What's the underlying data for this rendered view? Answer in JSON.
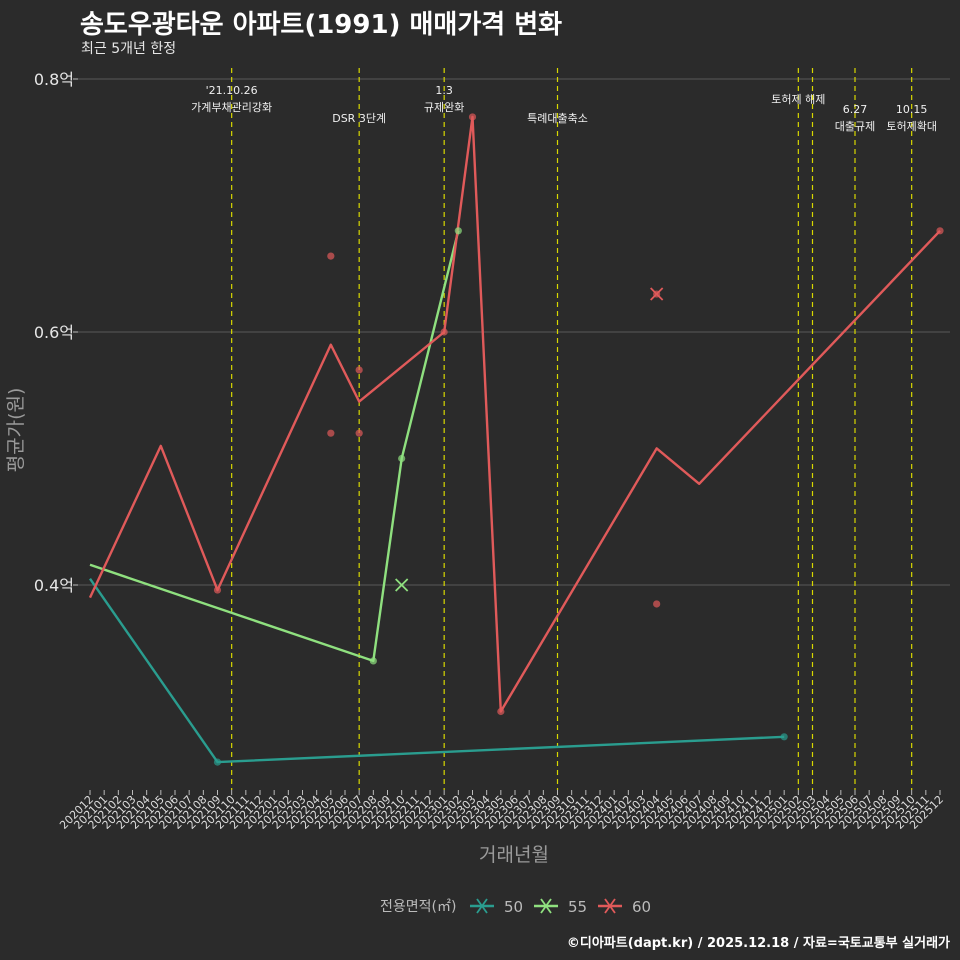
{
  "title": "송도우광타운 아파트(1991) 매매가격 변화",
  "subtitle": "최근 5개년 한정",
  "caption": "©디아파트(dapt.kr) / 2025.12.18 / 자료=국토교통부 실거래가",
  "colors": {
    "background": "#2b2b2b",
    "grid": "#5a5a5a",
    "event_line": "#d8d800",
    "series_50": "#2a9d8f",
    "series_55": "#8fe07f",
    "series_60": "#e05a5a"
  },
  "chart_data": {
    "type": "line",
    "xlabel": "거래년월",
    "ylabel": "평균가(원)",
    "ylim": [
      0.26,
      0.81
    ],
    "yticks": [
      {
        "value": 0.4,
        "label": "0.4억"
      },
      {
        "value": 0.6,
        "label": "0.6억"
      },
      {
        "value": 0.8,
        "label": "0.8억"
      }
    ],
    "categories": [
      "202012",
      "202101",
      "202102",
      "202103",
      "202104",
      "202105",
      "202106",
      "202107",
      "202108",
      "202109",
      "202110",
      "202111",
      "202112",
      "202201",
      "202202",
      "202203",
      "202204",
      "202205",
      "202206",
      "202207",
      "202208",
      "202209",
      "202210",
      "202211",
      "202212",
      "202301",
      "202302",
      "202303",
      "202304",
      "202305",
      "202306",
      "202307",
      "202308",
      "202309",
      "202310",
      "202311",
      "202312",
      "202401",
      "202402",
      "202403",
      "202404",
      "202405",
      "202406",
      "202407",
      "202408",
      "202409",
      "202410",
      "202411",
      "202412",
      "202501",
      "202502",
      "202503",
      "202504",
      "202505",
      "202506",
      "202507",
      "202508",
      "202509",
      "202510",
      "202511",
      "202512"
    ],
    "legend_title": "전용면적(㎡)",
    "series": [
      {
        "name": "50",
        "color": "#2a9d8f",
        "line": [
          [
            "202012",
            0.405
          ],
          [
            "202109",
            0.26
          ],
          [
            "202501",
            0.28
          ]
        ],
        "points": [
          [
            "202109",
            0.26
          ],
          [
            "202501",
            0.28
          ]
        ],
        "crosses": []
      },
      {
        "name": "55",
        "color": "#8fe07f",
        "line": [
          [
            "202012",
            0.416
          ],
          [
            "202208",
            0.34
          ],
          [
            "202210",
            0.5
          ],
          [
            "202302",
            0.68
          ]
        ],
        "points": [
          [
            "202208",
            0.34
          ],
          [
            "202210",
            0.5
          ],
          [
            "202302",
            0.68
          ]
        ],
        "crosses": [
          [
            "202210",
            0.4
          ]
        ]
      },
      {
        "name": "60",
        "color": "#e05a5a",
        "line": [
          [
            "202012",
            0.39
          ],
          [
            "202105",
            0.51
          ],
          [
            "202109",
            0.396
          ],
          [
            "202205",
            0.59
          ],
          [
            "202207",
            0.545
          ],
          [
            "202301",
            0.6
          ],
          [
            "202303",
            0.77
          ],
          [
            "202305",
            0.3
          ],
          [
            "202404",
            0.508
          ],
          [
            "202407",
            0.48
          ],
          [
            "202512",
            0.68
          ]
        ],
        "points": [
          [
            "202109",
            0.396
          ],
          [
            "202205",
            0.66
          ],
          [
            "202205",
            0.52
          ],
          [
            "202207",
            0.57
          ],
          [
            "202207",
            0.52
          ],
          [
            "202301",
            0.6
          ],
          [
            "202303",
            0.77
          ],
          [
            "202305",
            0.3
          ],
          [
            "202404",
            0.385
          ],
          [
            "202404",
            0.63
          ],
          [
            "202512",
            0.68
          ]
        ],
        "crosses": [
          [
            "202404",
            0.63
          ]
        ]
      }
    ],
    "events": [
      {
        "month": "202110",
        "label": [
          "'21.10.26",
          "가계부채관리강화"
        ],
        "row": 0
      },
      {
        "month": "202207",
        "label": [
          "DSR 3단계"
        ],
        "row": 1
      },
      {
        "month": "202301",
        "label": [
          "1.3",
          "규제완화"
        ],
        "row": 0
      },
      {
        "month": "202309",
        "label": [
          "특례대출축소"
        ],
        "row": 1
      },
      {
        "month": "202502",
        "label": [
          "토허제 해제"
        ],
        "row": 0
      },
      {
        "month": "202503",
        "label": [],
        "row": 0
      },
      {
        "month": "202506",
        "label": [
          "6.27",
          "대출규제"
        ],
        "row": 0
      },
      {
        "month": "202510",
        "label": [
          "10.15",
          "토허제확대"
        ],
        "row": 0
      }
    ]
  }
}
